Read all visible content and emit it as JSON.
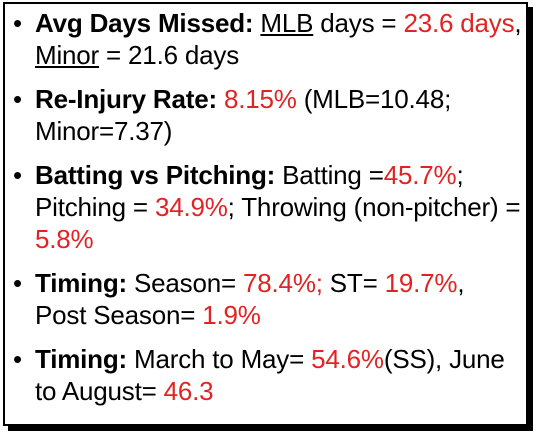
{
  "colors": {
    "accent": "#e02424",
    "text": "#000000"
  },
  "bullet_icon": "bullet-dot",
  "items": [
    {
      "label": "Avg Days Missed:",
      "parts": {
        "mlb": "MLB",
        "t1": " days = ",
        "v1": "23.6 days",
        "t2": ", ",
        "minor": "Minor",
        "t3": " = 21.6 days"
      }
    },
    {
      "label": "Re-Injury Rate:",
      "parts": {
        "v1": "8.15%",
        "t1": " (MLB=10.48; Minor=7.37)"
      }
    },
    {
      "label": "Batting vs Pitching:",
      "parts": {
        "t1": " Batting =",
        "v1": "45.7%",
        "t2": "; Pitching = ",
        "v2": "34.9%",
        "t3": "; Throwing (non-pitcher) = ",
        "v3": "5.8%"
      }
    },
    {
      "label": "Timing:",
      "parts": {
        "t1": " Season= ",
        "v1": "78.4%;",
        "t2": " ST= ",
        "v2": "19.7%",
        "t3": ", Post Season= ",
        "v3": "1.9%"
      }
    },
    {
      "label": "Timing:",
      "parts": {
        "t1": " March to May= ",
        "v1": "54.6%",
        "t2": "(SS), June to August= ",
        "v2": "46.3"
      }
    }
  ]
}
